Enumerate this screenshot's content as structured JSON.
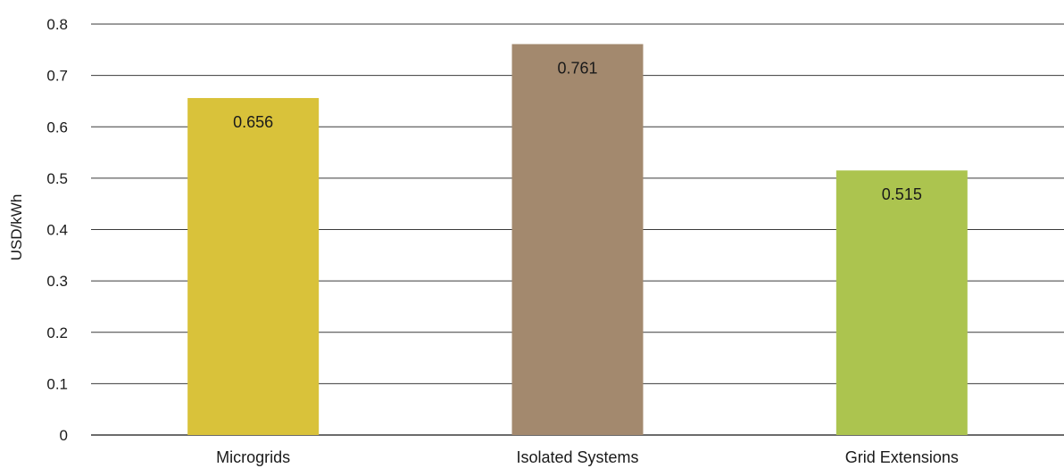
{
  "chart_data": {
    "type": "bar",
    "title": "",
    "xlabel": "",
    "ylabel": "USD/kWh",
    "categories": [
      "Microgrids",
      "Isolated Systems",
      "Grid Extensions"
    ],
    "values": [
      0.656,
      0.761,
      0.515
    ],
    "data_labels": [
      "0.656",
      "0.761",
      "0.515"
    ],
    "colors": [
      "#d9c23a",
      "#a3896e",
      "#acc44f"
    ],
    "ylim": [
      0,
      0.8
    ],
    "yticks": [
      0,
      0.1,
      0.2,
      0.3,
      0.4,
      0.5,
      0.6,
      0.7,
      0.8
    ],
    "ytick_labels": [
      "0",
      "0.1",
      "0.2",
      "0.3",
      "0.4",
      "0.5",
      "0.6",
      "0.7",
      "0.8"
    ],
    "grid": true,
    "legend": "none"
  }
}
